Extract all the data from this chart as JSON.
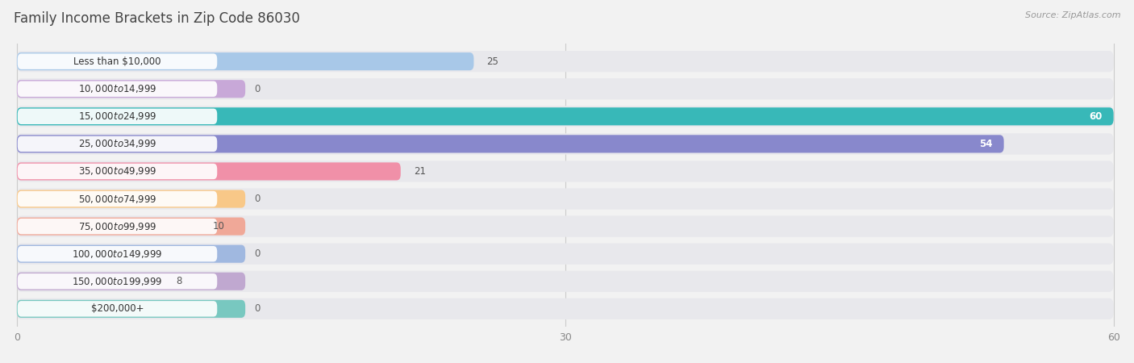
{
  "title": "Family Income Brackets in Zip Code 86030",
  "source": "Source: ZipAtlas.com",
  "categories": [
    "Less than $10,000",
    "$10,000 to $14,999",
    "$15,000 to $24,999",
    "$25,000 to $34,999",
    "$35,000 to $49,999",
    "$50,000 to $74,999",
    "$75,000 to $99,999",
    "$100,000 to $149,999",
    "$150,000 to $199,999",
    "$200,000+"
  ],
  "values": [
    25,
    0,
    60,
    54,
    21,
    0,
    10,
    0,
    8,
    0
  ],
  "bar_colors": [
    "#a8c8e8",
    "#c8a8d8",
    "#38b8b8",
    "#8888cc",
    "#f090a8",
    "#f8c888",
    "#f0a898",
    "#a0b8e0",
    "#c0a8d0",
    "#78c8c0"
  ],
  "xlim": [
    0,
    60
  ],
  "xticks": [
    0,
    30,
    60
  ],
  "background_color": "#f2f2f2",
  "row_bg_color": "#e8e8ec",
  "title_fontsize": 12,
  "label_fontsize": 8.5,
  "value_fontsize": 8.5,
  "value_inside_threshold": 50
}
